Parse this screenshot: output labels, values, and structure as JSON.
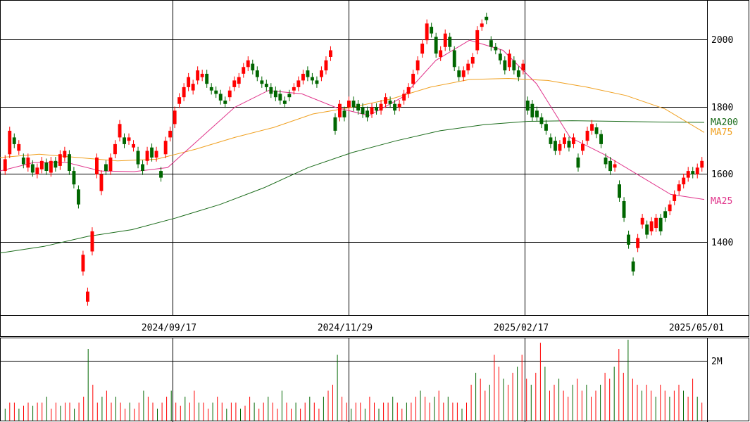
{
  "chart_data": [
    {
      "type": "candlestick",
      "title": "",
      "ylim": [
        1170,
        2110
      ],
      "y_ticks": [
        "2000",
        "1800",
        "1600",
        "1400"
      ],
      "x_ticks": [
        "2024/09/17",
        "2024/11/29",
        "2025/02/17",
        "2025/05/01"
      ],
      "grid": true,
      "colors": {
        "up": "#ff0000",
        "down": "#006600",
        "ma25": "#e0338a",
        "ma75": "#f0a020",
        "ma200": "#1a6b1a"
      },
      "series": [
        {
          "name": "MA200",
          "values": [
            1355,
            1375,
            1405,
            1425,
            1460,
            1500,
            1550,
            1610,
            1655,
            1690,
            1720,
            1738,
            1748,
            1750,
            1748,
            1746,
            1745
          ]
        },
        {
          "name": "MA75",
          "values": [
            1640,
            1650,
            1640,
            1630,
            1635,
            1665,
            1700,
            1730,
            1770,
            1790,
            1815,
            1850,
            1873,
            1876,
            1870,
            1850,
            1825,
            1785,
            1715
          ]
        },
        {
          "name": "MA25",
          "values": [
            1600,
            1625,
            1625,
            1600,
            1598,
            1610,
            1700,
            1790,
            1840,
            1830,
            1790,
            1765,
            1820,
            1930,
            1990,
            1960,
            1860,
            1700,
            1650,
            1590,
            1530,
            1515
          ]
        }
      ],
      "candles": [
        [
          1600,
          1635
        ],
        [
          1650,
          1720
        ],
        [
          1700,
          1680
        ],
        [
          1660,
          1680
        ],
        [
          1640,
          1620
        ],
        [
          1610,
          1640
        ],
        [
          1620,
          1595
        ],
        [
          1590,
          1610
        ],
        [
          1605,
          1630
        ],
        [
          1625,
          1600
        ],
        [
          1595,
          1630
        ],
        [
          1630,
          1610
        ],
        [
          1615,
          1650
        ],
        [
          1640,
          1660
        ],
        [
          1650,
          1600
        ],
        [
          1600,
          1560
        ],
        [
          1545,
          1500
        ],
        [
          1300,
          1350
        ],
        [
          1210,
          1240
        ],
        [
          1360,
          1420
        ],
        [
          1590,
          1640
        ],
        [
          1540,
          1590
        ],
        [
          1620,
          1600
        ],
        [
          1600,
          1640
        ],
        [
          1650,
          1680
        ],
        [
          1700,
          1740
        ],
        [
          1700,
          1680
        ],
        [
          1690,
          1700
        ],
        [
          1670,
          1680
        ],
        [
          1660,
          1620
        ],
        [
          1620,
          1600
        ],
        [
          1630,
          1660
        ],
        [
          1670,
          1640
        ],
        [
          1640,
          1660
        ],
        [
          1600,
          1580
        ],
        [
          1650,
          1690
        ],
        [
          1700,
          1720
        ],
        [
          1740,
          1780
        ],
        [
          1800,
          1820
        ],
        [
          1820,
          1850
        ],
        [
          1850,
          1880
        ],
        [
          1840,
          1860
        ],
        [
          1870,
          1900
        ],
        [
          1880,
          1890
        ],
        [
          1890,
          1860
        ],
        [
          1850,
          1840
        ],
        [
          1840,
          1830
        ],
        [
          1830,
          1810
        ],
        [
          1810,
          1800
        ],
        [
          1820,
          1840
        ],
        [
          1850,
          1870
        ],
        [
          1860,
          1880
        ],
        [
          1890,
          1910
        ],
        [
          1910,
          1930
        ],
        [
          1920,
          1900
        ],
        [
          1900,
          1880
        ],
        [
          1870,
          1860
        ],
        [
          1860,
          1850
        ],
        [
          1850,
          1830
        ],
        [
          1840,
          1820
        ],
        [
          1830,
          1810
        ],
        [
          1810,
          1800
        ],
        [
          1830,
          1820
        ],
        [
          1840,
          1850
        ],
        [
          1850,
          1870
        ],
        [
          1870,
          1890
        ],
        [
          1900,
          1880
        ],
        [
          1880,
          1870
        ],
        [
          1870,
          1860
        ],
        [
          1880,
          1900
        ],
        [
          1900,
          1930
        ],
        [
          1940,
          1960
        ],
        [
          1760,
          1720
        ],
        [
          1760,
          1800
        ],
        [
          1780,
          1760
        ],
        [
          1790,
          1810
        ],
        [
          1810,
          1790
        ],
        [
          1800,
          1780
        ],
        [
          1790,
          1770
        ],
        [
          1780,
          1760
        ],
        [
          1770,
          1790
        ],
        [
          1790,
          1780
        ],
        [
          1780,
          1800
        ],
        [
          1800,
          1820
        ],
        [
          1810,
          1800
        ],
        [
          1800,
          1780
        ],
        [
          1790,
          1800
        ],
        [
          1810,
          1830
        ],
        [
          1830,
          1850
        ],
        [
          1860,
          1890
        ],
        [
          1900,
          1930
        ],
        [
          1950,
          1980
        ],
        [
          1990,
          2040
        ],
        [
          2030,
          2010
        ],
        [
          2000,
          1950
        ],
        [
          1940,
          1960
        ],
        [
          1970,
          2010
        ],
        [
          2000,
          1970
        ],
        [
          1960,
          1910
        ],
        [
          1900,
          1880
        ],
        [
          1880,
          1900
        ],
        [
          1900,
          1920
        ],
        [
          1920,
          1940
        ],
        [
          1960,
          2020
        ],
        [
          2030,
          2040
        ],
        [
          2060,
          2050
        ],
        [
          1990,
          1970
        ],
        [
          1970,
          1960
        ],
        [
          1950,
          1930
        ],
        [
          1930,
          1900
        ],
        [
          1910,
          1950
        ],
        [
          1930,
          1900
        ],
        [
          1900,
          1880
        ],
        [
          1900,
          1920
        ],
        [
          1810,
          1780
        ],
        [
          1800,
          1760
        ],
        [
          1780,
          1760
        ],
        [
          1760,
          1740
        ],
        [
          1740,
          1720
        ],
        [
          1700,
          1680
        ],
        [
          1690,
          1660
        ],
        [
          1660,
          1680
        ],
        [
          1680,
          1700
        ],
        [
          1690,
          1670
        ],
        [
          1680,
          1700
        ],
        [
          1640,
          1610
        ],
        [
          1660,
          1680
        ],
        [
          1690,
          1720
        ],
        [
          1720,
          1740
        ],
        [
          1730,
          1710
        ],
        [
          1710,
          1680
        ],
        [
          1640,
          1620
        ],
        [
          1630,
          1600
        ],
        [
          1610,
          1620
        ],
        [
          1560,
          1520
        ],
        [
          1510,
          1460
        ],
        [
          1410,
          1380
        ],
        [
          1330,
          1300
        ],
        [
          1370,
          1400
        ],
        [
          1440,
          1460
        ],
        [
          1440,
          1410
        ],
        [
          1420,
          1450
        ],
        [
          1430,
          1460
        ],
        [
          1460,
          1420
        ],
        [
          1480,
          1460
        ],
        [
          1480,
          1500
        ],
        [
          1510,
          1530
        ],
        [
          1540,
          1560
        ],
        [
          1560,
          1580
        ],
        [
          1580,
          1600
        ],
        [
          1600,
          1590
        ],
        [
          1590,
          1610
        ],
        [
          1610,
          1630
        ]
      ],
      "volume_tick": "2M",
      "volumes": [
        0.2,
        0.3,
        0.3,
        0.2,
        0.25,
        0.3,
        0.25,
        0.3,
        0.3,
        0.4,
        0.2,
        0.3,
        0.25,
        0.3,
        0.3,
        0.2,
        0.3,
        0.4,
        1.2,
        0.6,
        0.3,
        0.4,
        0.5,
        0.3,
        0.4,
        0.3,
        0.2,
        0.3,
        0.2,
        0.3,
        0.5,
        0.4,
        0.3,
        0.2,
        0.3,
        0.4,
        0.5,
        0.3,
        0.25,
        0.4,
        0.3,
        0.5,
        0.3,
        0.3,
        0.2,
        0.3,
        0.4,
        0.3,
        0.2,
        0.3,
        0.3,
        0.2,
        0.25,
        0.4,
        0.3,
        0.2,
        0.3,
        0.4,
        0.3,
        0.2,
        0.5,
        0.3,
        0.2,
        0.3,
        0.2,
        0.3,
        0.4,
        0.3,
        0.2,
        0.4,
        0.5,
        0.6,
        1.1,
        0.4,
        0.3,
        0.2,
        0.3,
        0.3,
        0.2,
        0.4,
        0.3,
        0.2,
        0.3,
        0.3,
        0.4,
        0.3,
        0.2,
        0.3,
        0.3,
        0.4,
        0.5,
        0.4,
        0.3,
        0.4,
        0.5,
        0.3,
        0.4,
        0.3,
        0.3,
        0.2,
        0.3,
        0.6,
        0.8,
        0.7,
        0.5,
        0.6,
        1.1,
        0.9,
        0.7,
        0.6,
        0.8,
        0.9,
        1.1,
        0.7,
        0.6,
        0.8,
        1.3,
        0.9,
        0.5,
        0.6,
        0.7,
        0.5,
        0.4,
        0.6,
        0.7,
        0.5,
        0.6,
        0.4,
        0.5,
        0.6,
        0.8,
        0.7,
        0.9,
        1.2,
        0.8,
        1.4,
        0.7,
        0.6,
        0.5,
        0.6,
        0.5,
        0.4,
        0.6,
        0.5,
        0.4,
        0.5,
        0.6,
        0.5,
        0.4,
        0.7,
        0.4,
        0.3
      ]
    }
  ],
  "labels": {
    "ma200": "MA200",
    "ma75": "MA75",
    "ma25": "MA25"
  }
}
